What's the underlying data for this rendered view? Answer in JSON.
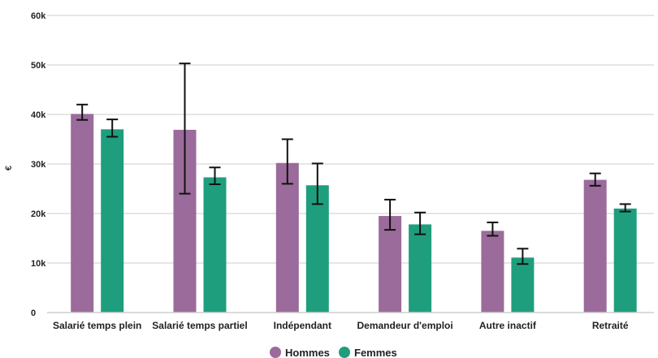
{
  "chart_data": {
    "type": "bar",
    "xlabel": "",
    "ylabel": "€",
    "ylim": [
      0,
      60000
    ],
    "yticks": [
      0,
      10000,
      20000,
      30000,
      40000,
      50000,
      60000
    ],
    "ytick_labels": [
      "0",
      "10k",
      "20k",
      "30k",
      "40k",
      "50k",
      "60k"
    ],
    "grid": true,
    "legend_position": "bottom",
    "categories": [
      "Salarié temps plein",
      "Salarié temps partiel",
      "Indépendant",
      "Demandeur d'emploi",
      "Autre inactif",
      "Retraité"
    ],
    "series": [
      {
        "name": "Hommes",
        "color": "#9b6b9b",
        "values": [
          40100,
          36900,
          30200,
          19500,
          16500,
          26800
        ],
        "error_low": [
          38900,
          24000,
          26000,
          16700,
          15500,
          25600
        ],
        "error_high": [
          42000,
          50300,
          35000,
          22800,
          18200,
          28100
        ]
      },
      {
        "name": "Femmes",
        "color": "#1f9e7d",
        "values": [
          37000,
          27300,
          25700,
          17800,
          11100,
          21000
        ],
        "error_low": [
          35500,
          25900,
          21900,
          15800,
          9800,
          20400
        ],
        "error_high": [
          39000,
          29300,
          30100,
          20200,
          12900,
          21900
        ]
      }
    ]
  }
}
